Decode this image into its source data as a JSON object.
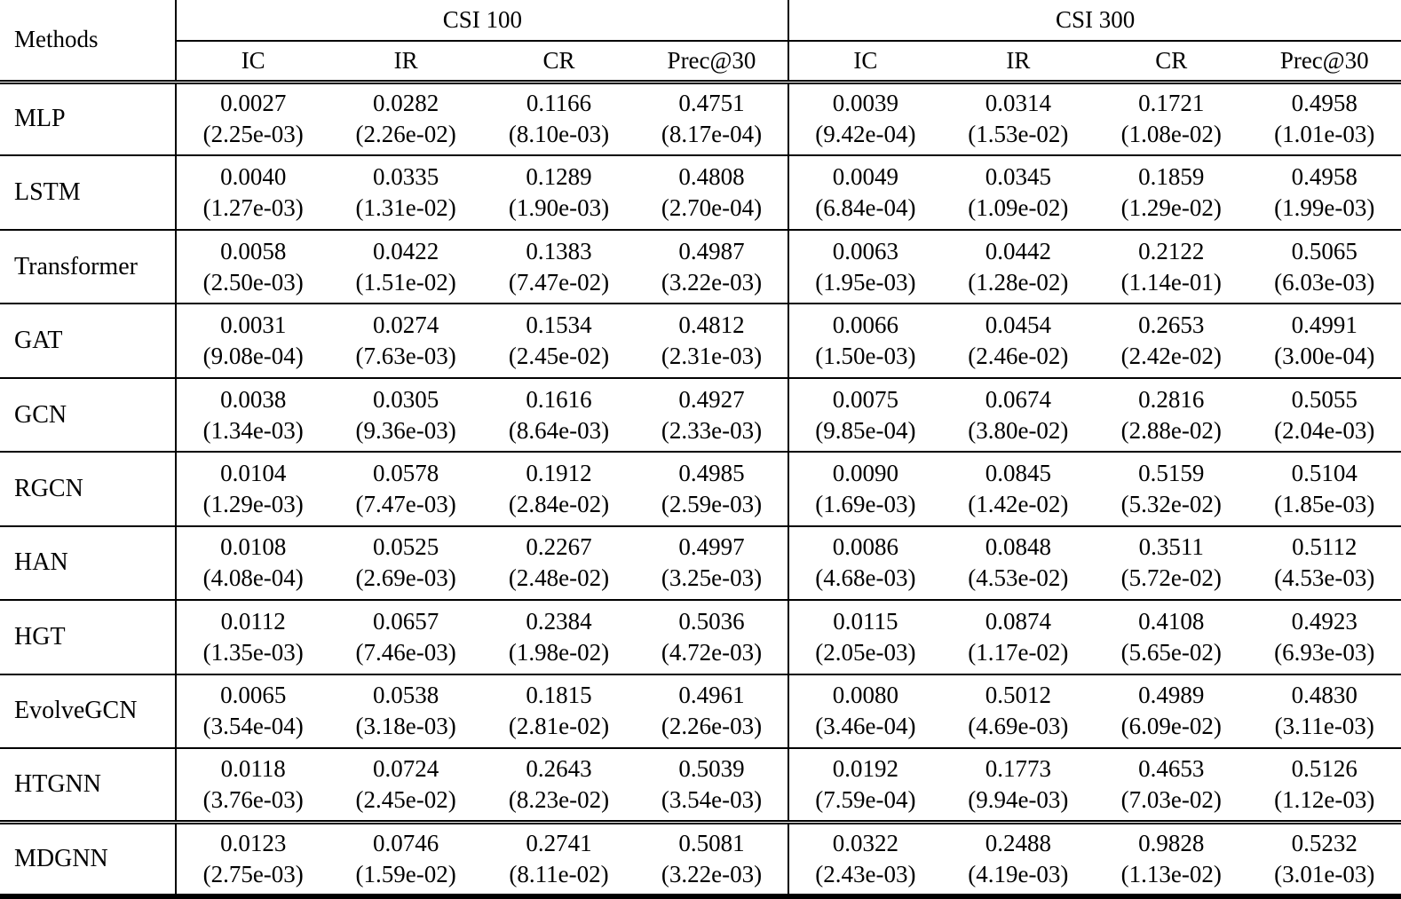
{
  "colors": {
    "background": "#ffffff",
    "text": "#000000",
    "rule": "#000000"
  },
  "table": {
    "methods_header": "Methods",
    "groups": [
      {
        "label": "CSI 100"
      },
      {
        "label": "CSI 300"
      }
    ],
    "metrics": [
      "IC",
      "IR",
      "CR",
      "Prec@30"
    ],
    "rows": [
      {
        "method": "MLP",
        "bold": false,
        "cells": [
          {
            "v": "0.0027",
            "s": "(2.25e-03)"
          },
          {
            "v": "0.0282",
            "s": "(2.26e-02)"
          },
          {
            "v": "0.1166",
            "s": "(8.10e-03)"
          },
          {
            "v": "0.4751",
            "s": "(8.17e-04)"
          },
          {
            "v": "0.0039",
            "s": "(9.42e-04)"
          },
          {
            "v": "0.0314",
            "s": "(1.53e-02)"
          },
          {
            "v": "0.1721",
            "s": "(1.08e-02)"
          },
          {
            "v": "0.4958",
            "s": "(1.01e-03)"
          }
        ]
      },
      {
        "method": "LSTM",
        "bold": false,
        "cells": [
          {
            "v": "0.0040",
            "s": "(1.27e-03)"
          },
          {
            "v": "0.0335",
            "s": "(1.31e-02)"
          },
          {
            "v": "0.1289",
            "s": "(1.90e-03)"
          },
          {
            "v": "0.4808",
            "s": "(2.70e-04)"
          },
          {
            "v": "0.0049",
            "s": "(6.84e-04)"
          },
          {
            "v": "0.0345",
            "s": "(1.09e-02)"
          },
          {
            "v": "0.1859",
            "s": "(1.29e-02)"
          },
          {
            "v": "0.4958",
            "s": "(1.99e-03)"
          }
        ]
      },
      {
        "method": "Transformer",
        "bold": false,
        "cells": [
          {
            "v": "0.0058",
            "s": "(2.50e-03)"
          },
          {
            "v": "0.0422",
            "s": "(1.51e-02)"
          },
          {
            "v": "0.1383",
            "s": "(7.47e-02)"
          },
          {
            "v": "0.4987",
            "s": "(3.22e-03)"
          },
          {
            "v": "0.0063",
            "s": "(1.95e-03)"
          },
          {
            "v": "0.0442",
            "s": "(1.28e-02)"
          },
          {
            "v": "0.2122",
            "s": "(1.14e-01)"
          },
          {
            "v": "0.5065",
            "s": "(6.03e-03)"
          }
        ]
      },
      {
        "method": "GAT",
        "bold": false,
        "cells": [
          {
            "v": "0.0031",
            "s": "(9.08e-04)"
          },
          {
            "v": "0.0274",
            "s": "(7.63e-03)"
          },
          {
            "v": "0.1534",
            "s": "(2.45e-02)"
          },
          {
            "v": "0.4812",
            "s": "(2.31e-03)"
          },
          {
            "v": "0.0066",
            "s": "(1.50e-03)"
          },
          {
            "v": "0.0454",
            "s": "(2.46e-02)"
          },
          {
            "v": "0.2653",
            "s": "(2.42e-02)"
          },
          {
            "v": "0.4991",
            "s": "(3.00e-04)"
          }
        ]
      },
      {
        "method": "GCN",
        "bold": false,
        "cells": [
          {
            "v": "0.0038",
            "s": "(1.34e-03)"
          },
          {
            "v": "0.0305",
            "s": "(9.36e-03)"
          },
          {
            "v": "0.1616",
            "s": "(8.64e-03)"
          },
          {
            "v": "0.4927",
            "s": "(2.33e-03)"
          },
          {
            "v": "0.0075",
            "s": "(9.85e-04)"
          },
          {
            "v": "0.0674",
            "s": "(3.80e-02)"
          },
          {
            "v": "0.2816",
            "s": "(2.88e-02)"
          },
          {
            "v": "0.5055",
            "s": "(2.04e-03)"
          }
        ]
      },
      {
        "method": "RGCN",
        "bold": false,
        "cells": [
          {
            "v": "0.0104",
            "s": "(1.29e-03)"
          },
          {
            "v": "0.0578",
            "s": "(7.47e-03)"
          },
          {
            "v": "0.1912",
            "s": "(2.84e-02)"
          },
          {
            "v": "0.4985",
            "s": "(2.59e-03)"
          },
          {
            "v": "0.0090",
            "s": "(1.69e-03)"
          },
          {
            "v": "0.0845",
            "s": "(1.42e-02)"
          },
          {
            "v": "0.5159",
            "s": "(5.32e-02)"
          },
          {
            "v": "0.5104",
            "s": "(1.85e-03)"
          }
        ]
      },
      {
        "method": "HAN",
        "bold": false,
        "cells": [
          {
            "v": "0.0108",
            "s": "(4.08e-04)"
          },
          {
            "v": "0.0525",
            "s": "(2.69e-03)"
          },
          {
            "v": "0.2267",
            "s": "(2.48e-02)"
          },
          {
            "v": "0.4997",
            "s": "(3.25e-03)"
          },
          {
            "v": "0.0086",
            "s": "(4.68e-03)"
          },
          {
            "v": "0.0848",
            "s": "(4.53e-02)"
          },
          {
            "v": "0.3511",
            "s": "(5.72e-02)"
          },
          {
            "v": "0.5112",
            "s": "(4.53e-03)"
          }
        ]
      },
      {
        "method": "HGT",
        "bold": false,
        "cells": [
          {
            "v": "0.0112",
            "s": "(1.35e-03)"
          },
          {
            "v": "0.0657",
            "s": "(7.46e-03)"
          },
          {
            "v": "0.2384",
            "s": "(1.98e-02)"
          },
          {
            "v": "0.5036",
            "s": "(4.72e-03)"
          },
          {
            "v": "0.0115",
            "s": "(2.05e-03)"
          },
          {
            "v": "0.0874",
            "s": "(1.17e-02)"
          },
          {
            "v": "0.4108",
            "s": "(5.65e-02)"
          },
          {
            "v": "0.4923",
            "s": "(6.93e-03)"
          }
        ]
      },
      {
        "method": "EvolveGCN",
        "bold": false,
        "cells": [
          {
            "v": "0.0065",
            "s": "(3.54e-04)"
          },
          {
            "v": "0.0538",
            "s": "(3.18e-03)"
          },
          {
            "v": "0.1815",
            "s": "(2.81e-02)"
          },
          {
            "v": "0.4961",
            "s": "(2.26e-03)"
          },
          {
            "v": "0.0080",
            "s": "(3.46e-04)"
          },
          {
            "v": "0.5012",
            "s": "(4.69e-03)"
          },
          {
            "v": "0.4989",
            "s": "(6.09e-02)"
          },
          {
            "v": "0.4830",
            "s": "(3.11e-03)"
          }
        ]
      },
      {
        "method": "HTGNN",
        "bold": false,
        "cells": [
          {
            "v": "0.0118",
            "s": "(3.76e-03)"
          },
          {
            "v": "0.0724",
            "s": "(2.45e-02)"
          },
          {
            "v": "0.2643",
            "s": "(8.23e-02)"
          },
          {
            "v": "0.5039",
            "s": "(3.54e-03)"
          },
          {
            "v": "0.0192",
            "s": "(7.59e-04)"
          },
          {
            "v": "0.1773",
            "s": "(9.94e-03)"
          },
          {
            "v": "0.4653",
            "s": "(7.03e-02)"
          },
          {
            "v": "0.5126",
            "s": "(1.12e-03)"
          }
        ]
      },
      {
        "method": "MDGNN",
        "bold": true,
        "cells": [
          {
            "v": "0.0123",
            "s": "(2.75e-03)"
          },
          {
            "v": "0.0746",
            "s": "(1.59e-02)"
          },
          {
            "v": "0.2741",
            "s": "(8.11e-02)"
          },
          {
            "v": "0.5081",
            "s": "(3.22e-03)"
          },
          {
            "v": "0.0322",
            "s": "(2.43e-03)"
          },
          {
            "v": "0.2488",
            "s": "(4.19e-03)"
          },
          {
            "v": "0.9828",
            "s": "(1.13e-02)"
          },
          {
            "v": "0.5232",
            "s": "(3.01e-03)"
          }
        ]
      }
    ]
  }
}
